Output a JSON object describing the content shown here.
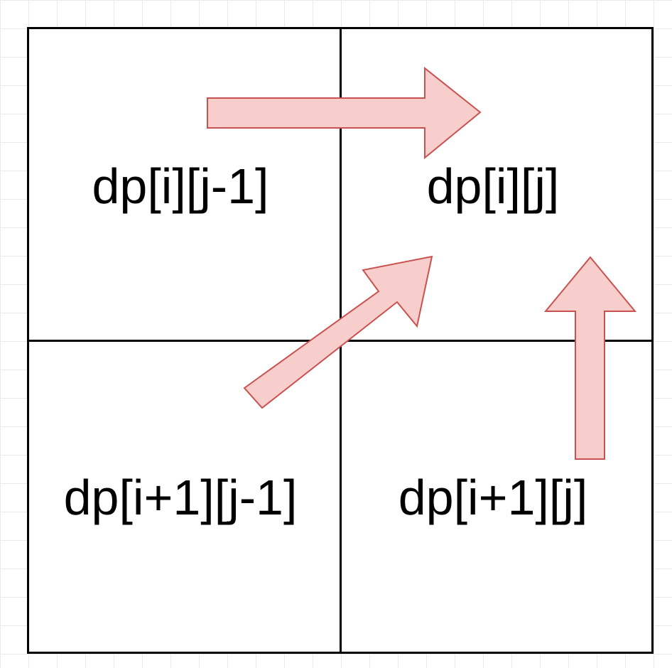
{
  "cells": {
    "top_left": "dp[i][j-1]",
    "top_right": "dp[i][j]",
    "bottom_left": "dp[i+1][j-1]",
    "bottom_right": "dp[i+1][j]"
  },
  "colors": {
    "arrow_fill": "#f8cecc",
    "arrow_stroke": "#c85250",
    "grid_line": "#000000",
    "background_grid": "#e9e9e9"
  }
}
